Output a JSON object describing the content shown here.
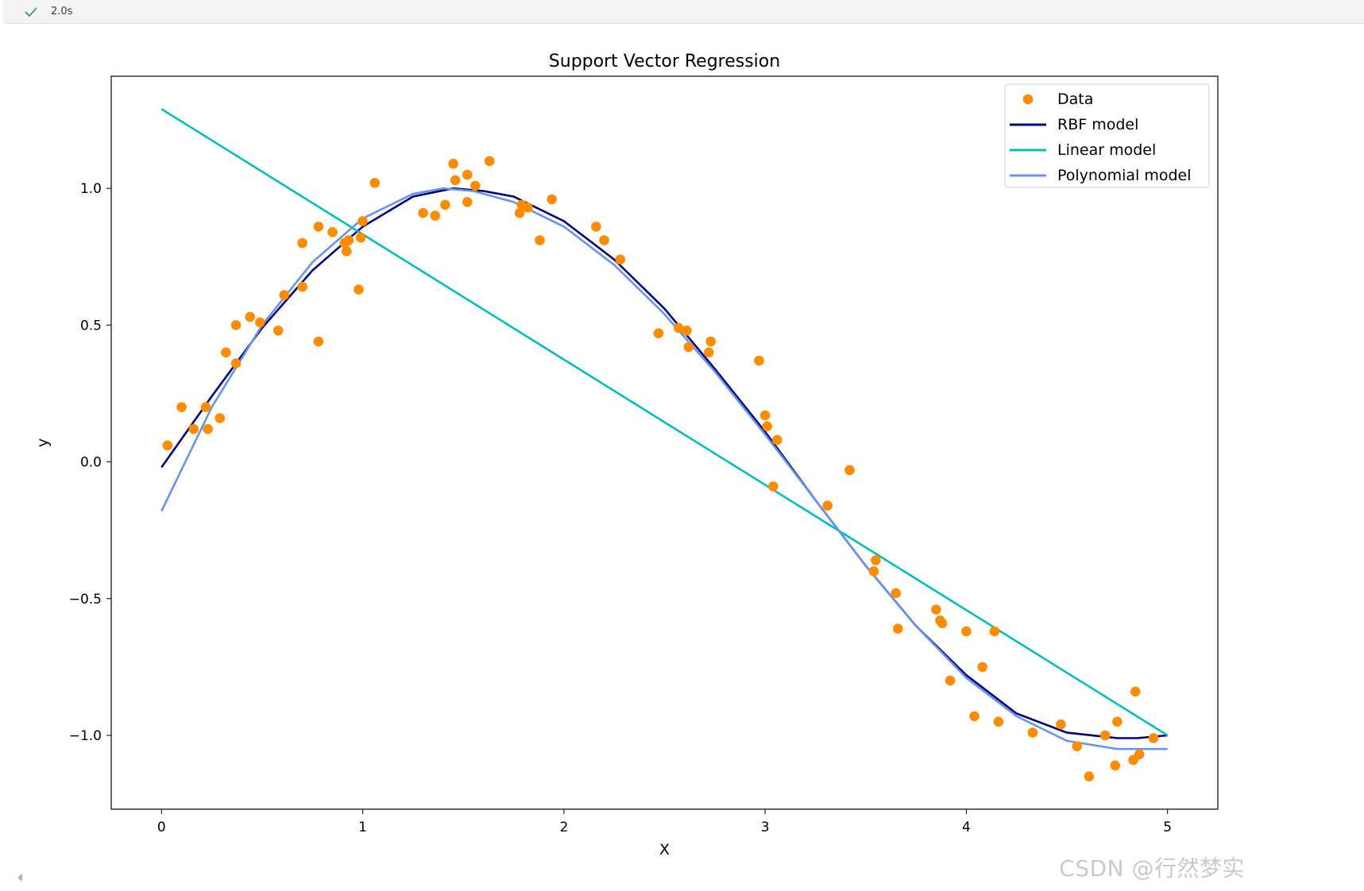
{
  "cell": {
    "status_icon": "check-icon",
    "exec_time": "2.0s",
    "status_color": "#2e8b57"
  },
  "watermark": "CSDN @行然梦实",
  "chart_data": {
    "type": "scatter",
    "title": "Support Vector Regression",
    "xlabel": "X",
    "ylabel": "y",
    "xlim": [
      -0.25,
      5.25
    ],
    "ylim": [
      -1.27,
      1.41
    ],
    "xticks": [
      0,
      1,
      2,
      3,
      4,
      5
    ],
    "xtick_labels": [
      "0",
      "1",
      "2",
      "3",
      "4",
      "5"
    ],
    "yticks": [
      1.0,
      0.5,
      0.0,
      -0.5,
      -1.0
    ],
    "ytick_labels": [
      "1.0",
      "0.5",
      "0.0",
      "−0.5",
      "−1.0"
    ],
    "grid": false,
    "legend_position": "top-right",
    "series": [
      {
        "name": "Data",
        "kind": "scatter",
        "color": "#ff8c00",
        "points": [
          [
            0.03,
            0.06
          ],
          [
            0.1,
            0.2
          ],
          [
            0.16,
            0.12
          ],
          [
            0.22,
            0.2
          ],
          [
            0.23,
            0.12
          ],
          [
            0.29,
            0.16
          ],
          [
            0.32,
            0.4
          ],
          [
            0.37,
            0.5
          ],
          [
            0.37,
            0.36
          ],
          [
            0.44,
            0.53
          ],
          [
            0.49,
            0.51
          ],
          [
            0.58,
            0.48
          ],
          [
            0.61,
            0.61
          ],
          [
            0.7,
            0.8
          ],
          [
            0.7,
            0.64
          ],
          [
            0.78,
            0.86
          ],
          [
            0.78,
            0.44
          ],
          [
            0.85,
            0.84
          ],
          [
            0.91,
            0.8
          ],
          [
            0.92,
            0.77
          ],
          [
            0.93,
            0.81
          ],
          [
            0.98,
            0.63
          ],
          [
            0.99,
            0.82
          ],
          [
            1.0,
            0.88
          ],
          [
            1.06,
            1.02
          ],
          [
            1.3,
            0.91
          ],
          [
            1.36,
            0.9
          ],
          [
            1.41,
            0.94
          ],
          [
            1.45,
            1.09
          ],
          [
            1.46,
            1.03
          ],
          [
            1.52,
            0.95
          ],
          [
            1.52,
            1.05
          ],
          [
            1.56,
            1.01
          ],
          [
            1.63,
            1.1
          ],
          [
            1.78,
            0.91
          ],
          [
            1.79,
            0.94
          ],
          [
            1.82,
            0.93
          ],
          [
            1.88,
            0.81
          ],
          [
            1.94,
            0.96
          ],
          [
            2.16,
            0.86
          ],
          [
            2.2,
            0.81
          ],
          [
            2.28,
            0.74
          ],
          [
            2.47,
            0.47
          ],
          [
            2.57,
            0.49
          ],
          [
            2.61,
            0.48
          ],
          [
            2.62,
            0.42
          ],
          [
            2.72,
            0.4
          ],
          [
            2.73,
            0.44
          ],
          [
            2.97,
            0.37
          ],
          [
            3.0,
            0.17
          ],
          [
            3.01,
            0.13
          ],
          [
            3.04,
            -0.09
          ],
          [
            3.06,
            0.08
          ],
          [
            3.31,
            -0.16
          ],
          [
            3.42,
            -0.03
          ],
          [
            3.54,
            -0.4
          ],
          [
            3.55,
            -0.36
          ],
          [
            3.65,
            -0.48
          ],
          [
            3.66,
            -0.61
          ],
          [
            3.85,
            -0.54
          ],
          [
            3.87,
            -0.58
          ],
          [
            3.88,
            -0.59
          ],
          [
            3.92,
            -0.8
          ],
          [
            4.0,
            -0.62
          ],
          [
            4.04,
            -0.93
          ],
          [
            4.08,
            -0.75
          ],
          [
            4.14,
            -0.62
          ],
          [
            4.16,
            -0.95
          ],
          [
            4.33,
            -0.99
          ],
          [
            4.47,
            -0.96
          ],
          [
            4.55,
            -1.04
          ],
          [
            4.61,
            -1.15
          ],
          [
            4.69,
            -1.0
          ],
          [
            4.74,
            -1.11
          ],
          [
            4.75,
            -0.95
          ],
          [
            4.83,
            -1.09
          ],
          [
            4.84,
            -0.84
          ],
          [
            4.86,
            -1.07
          ],
          [
            4.93,
            -1.01
          ]
        ]
      },
      {
        "name": "RBF model",
        "kind": "line",
        "color": "#000080",
        "points": [
          [
            0.0,
            -0.02
          ],
          [
            0.25,
            0.24
          ],
          [
            0.5,
            0.49
          ],
          [
            0.75,
            0.7
          ],
          [
            1.0,
            0.86
          ],
          [
            1.25,
            0.97
          ],
          [
            1.45,
            1.0
          ],
          [
            1.6,
            0.99
          ],
          [
            1.75,
            0.97
          ],
          [
            2.0,
            0.88
          ],
          [
            2.25,
            0.74
          ],
          [
            2.5,
            0.56
          ],
          [
            2.75,
            0.34
          ],
          [
            3.0,
            0.11
          ],
          [
            3.25,
            -0.14
          ],
          [
            3.5,
            -0.38
          ],
          [
            3.75,
            -0.6
          ],
          [
            4.0,
            -0.78
          ],
          [
            4.25,
            -0.92
          ],
          [
            4.5,
            -0.99
          ],
          [
            4.75,
            -1.01
          ],
          [
            4.85,
            -1.01
          ],
          [
            5.0,
            -1.0
          ]
        ]
      },
      {
        "name": "Linear model",
        "kind": "line",
        "color": "#00bfbf",
        "points": [
          [
            0.0,
            1.29
          ],
          [
            5.0,
            -1.0
          ]
        ]
      },
      {
        "name": "Polynomial model",
        "kind": "line",
        "color": "#6495ed",
        "points": [
          [
            0.0,
            -0.18
          ],
          [
            0.25,
            0.2
          ],
          [
            0.5,
            0.5
          ],
          [
            0.75,
            0.73
          ],
          [
            1.0,
            0.89
          ],
          [
            1.25,
            0.98
          ],
          [
            1.4,
            1.0
          ],
          [
            1.55,
            0.99
          ],
          [
            1.75,
            0.95
          ],
          [
            2.0,
            0.86
          ],
          [
            2.25,
            0.72
          ],
          [
            2.5,
            0.54
          ],
          [
            2.75,
            0.33
          ],
          [
            3.0,
            0.1
          ],
          [
            3.25,
            -0.14
          ],
          [
            3.5,
            -0.38
          ],
          [
            3.75,
            -0.6
          ],
          [
            4.0,
            -0.79
          ],
          [
            4.25,
            -0.93
          ],
          [
            4.5,
            -1.02
          ],
          [
            4.75,
            -1.05
          ],
          [
            5.0,
            -1.05
          ]
        ]
      }
    ]
  }
}
